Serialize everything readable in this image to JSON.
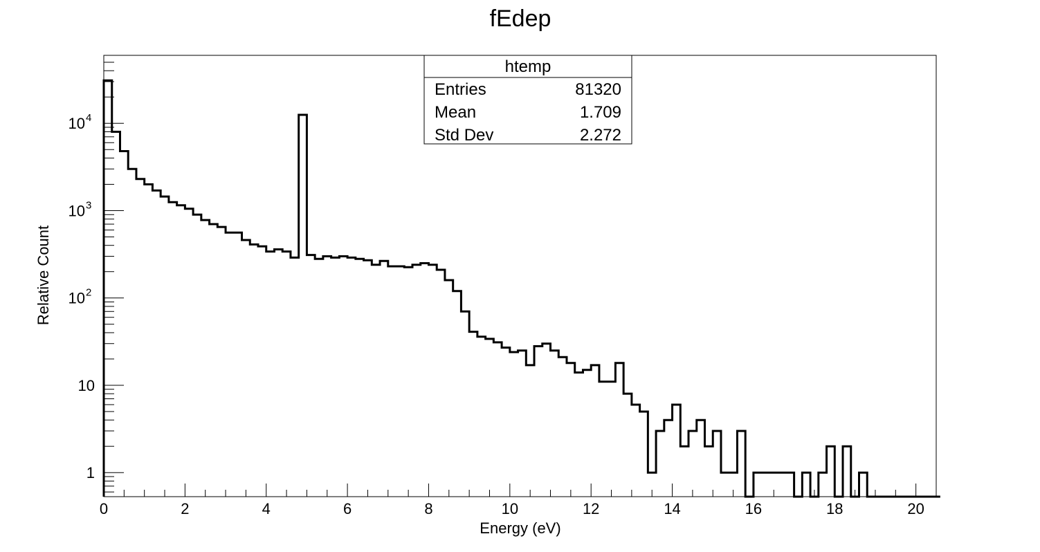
{
  "chart_data": {
    "type": "histogram",
    "title": "fEdep",
    "xlabel": "Energy (eV)",
    "ylabel": "Relative Count",
    "x_range": [
      0,
      20.5
    ],
    "y_range": [
      0.53,
      60000
    ],
    "y_scale": "log",
    "grid": false,
    "bin_width": 0.2,
    "x_ticks": [
      "0",
      "2",
      "4",
      "6",
      "8",
      "10",
      "12",
      "14",
      "16",
      "18",
      "20"
    ],
    "x_tick_values": [
      0,
      2,
      4,
      6,
      8,
      10,
      12,
      14,
      16,
      18,
      20
    ],
    "y_ticks": [
      {
        "value": 1,
        "base": "1",
        "exp": ""
      },
      {
        "value": 10,
        "base": "10",
        "exp": ""
      },
      {
        "value": 100,
        "base": "10",
        "exp": "2"
      },
      {
        "value": 1000,
        "base": "10",
        "exp": "3"
      },
      {
        "value": 10000,
        "base": "10",
        "exp": "4"
      }
    ],
    "counts": [
      31000,
      8000,
      4800,
      3000,
      2300,
      2000,
      1700,
      1450,
      1250,
      1150,
      1050,
      900,
      780,
      700,
      650,
      560,
      560,
      460,
      410,
      390,
      340,
      360,
      340,
      290,
      12500,
      310,
      280,
      300,
      290,
      300,
      290,
      280,
      270,
      240,
      265,
      230,
      230,
      225,
      240,
      250,
      240,
      210,
      160,
      120,
      70,
      41,
      36,
      34,
      31,
      27,
      24,
      25,
      17,
      28,
      30,
      25,
      21,
      18,
      14,
      15,
      17,
      11,
      11,
      18,
      8,
      6,
      5,
      1,
      3,
      4,
      6,
      2,
      3,
      4,
      2,
      3,
      1,
      1,
      3,
      0,
      1,
      1,
      1,
      1,
      1,
      0,
      1,
      0,
      1,
      2,
      0,
      2,
      0,
      1,
      0,
      0,
      0,
      0,
      0,
      0,
      0,
      0,
      0
    ]
  },
  "stats_box": {
    "title": "htemp",
    "rows": [
      {
        "label": "Entries",
        "value": "81320"
      },
      {
        "label": "Mean",
        "value": "1.709"
      },
      {
        "label": "Std Dev",
        "value": "2.272"
      }
    ]
  }
}
